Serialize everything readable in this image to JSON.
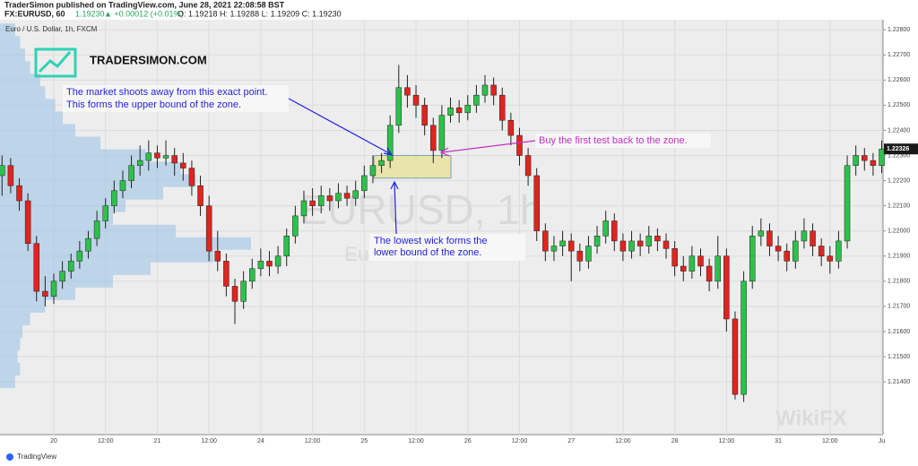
{
  "header": {
    "publisher": "TraderSimon published on TradingView.com, June 28, 2021 22:08:58 BST",
    "symbol": "FX:EURUSD, 60",
    "price": "1.19230",
    "change": "▲ +0.00012 (+0.01%)",
    "ohlc": "O: 1.19218 H: 1.19288 L: 1.19209 C: 1.19230"
  },
  "footer": "TradingView",
  "chart_data": {
    "type": "candlestick",
    "legend_text": "Euro / U.S. Dollar, 1h, FXCM",
    "watermark": [
      "EURUSD, 1h",
      "Euro / U.S. Dollar"
    ],
    "logo": "TRADERSIMON.COM",
    "corner_watermark": "WikiFX",
    "up_color": "#2cc24a",
    "down_color": "#e0241e",
    "categories": [
      null,
      null,
      null,
      null,
      null,
      null,
      "20",
      null,
      null,
      null,
      null,
      null,
      "12:00",
      null,
      null,
      null,
      null,
      null,
      "21",
      null,
      null,
      null,
      null,
      null,
      "12:00",
      null,
      null,
      null,
      null,
      null,
      "24",
      null,
      null,
      null,
      null,
      null,
      "12:00",
      null,
      null,
      null,
      null,
      null,
      "25",
      null,
      null,
      null,
      null,
      null,
      "12:00",
      null,
      null,
      null,
      null,
      null,
      "26",
      null,
      null,
      null,
      null,
      null,
      "12:00",
      null,
      null,
      null,
      null,
      null,
      "27",
      null,
      null,
      null,
      null,
      null,
      "12:00",
      null,
      null,
      null,
      null,
      null,
      "28",
      null,
      null,
      null,
      null,
      null,
      "12:00",
      null,
      null,
      null,
      null,
      null,
      "31",
      null,
      null,
      null,
      null,
      null,
      "12:00",
      null,
      null,
      null,
      null,
      null,
      "Ju"
    ],
    "series": [
      {
        "name": "EURUSD",
        "open": [
          1.2222,
          1.2226,
          1.2218,
          1.2212,
          1.2195,
          1.2176,
          1.2174,
          1.218,
          1.2184,
          1.2188,
          1.2192,
          1.2197,
          1.2204,
          1.221,
          1.2216,
          1.222,
          1.2226,
          1.2228,
          1.2231,
          1.2229,
          1.223,
          1.2227,
          1.2225,
          1.2218,
          1.221,
          1.2192,
          1.2188,
          1.2178,
          1.2172,
          1.218,
          1.2185,
          1.2188,
          1.2186,
          1.219,
          1.2198,
          1.2206,
          1.2212,
          1.221,
          1.2214,
          1.2212,
          1.2215,
          1.2213,
          1.2216,
          1.2222,
          1.2226,
          1.2228,
          1.2242,
          1.2257,
          1.2254,
          1.225,
          1.2242,
          1.2232,
          1.2246,
          1.2249,
          1.2247,
          1.225,
          1.2254,
          1.2258,
          1.2254,
          1.2244,
          1.2238,
          1.223,
          1.2222,
          1.22,
          1.2192,
          1.2194,
          1.2196,
          1.2192,
          1.2188,
          1.2194,
          1.2198,
          1.2204,
          1.2196,
          1.2192,
          1.2196,
          1.2194,
          1.2198,
          1.2196,
          1.2193,
          1.2186,
          1.2184,
          1.219,
          1.2186,
          1.218,
          1.219,
          1.2165,
          1.2135,
          1.218,
          1.2198,
          1.22,
          1.2194,
          1.2192,
          1.2188,
          1.2196,
          1.22,
          1.2194,
          1.219,
          1.2188,
          1.2196,
          1.2226,
          1.223,
          1.2228,
          1.2226
        ],
        "high": [
          1.223,
          1.2229,
          1.2221,
          1.2215,
          1.2198,
          1.2182,
          1.2183,
          1.2188,
          1.2191,
          1.2196,
          1.22,
          1.2208,
          1.2213,
          1.222,
          1.2224,
          1.223,
          1.2234,
          1.2236,
          1.2234,
          1.2236,
          1.2233,
          1.2231,
          1.2228,
          1.2222,
          1.2214,
          1.22,
          1.2191,
          1.2181,
          1.2184,
          1.2189,
          1.2193,
          1.2192,
          1.2194,
          1.2201,
          1.221,
          1.2216,
          1.2217,
          1.2218,
          1.2217,
          1.2219,
          1.2218,
          1.222,
          1.2226,
          1.223,
          1.2231,
          1.2246,
          1.2266,
          1.2262,
          1.2258,
          1.2253,
          1.2245,
          1.225,
          1.2253,
          1.2252,
          1.2254,
          1.2258,
          1.2262,
          1.2261,
          1.2257,
          1.2247,
          1.2241,
          1.2233,
          1.2225,
          1.2203,
          1.2198,
          1.22,
          1.2199,
          1.2195,
          1.2198,
          1.2202,
          1.2208,
          1.2207,
          1.2199,
          1.22,
          1.2199,
          1.2202,
          1.2201,
          1.2199,
          1.2196,
          1.219,
          1.2194,
          1.2193,
          1.2189,
          1.2198,
          1.2193,
          1.2168,
          1.2184,
          1.2202,
          1.2205,
          1.2203,
          1.2198,
          1.2195,
          1.22,
          1.2205,
          1.2203,
          1.2197,
          1.2194,
          1.22,
          1.223,
          1.2234,
          1.2233,
          1.2231,
          1.2236
        ],
        "low": [
          1.2214,
          1.2215,
          1.2208,
          1.2192,
          1.2172,
          1.217,
          1.2171,
          1.2177,
          1.2181,
          1.2185,
          1.2189,
          1.2194,
          1.2201,
          1.2207,
          1.2213,
          1.2217,
          1.2222,
          1.2224,
          1.2225,
          1.2226,
          1.2222,
          1.222,
          1.2214,
          1.2206,
          1.2188,
          1.2184,
          1.2174,
          1.2163,
          1.2169,
          1.2177,
          1.2182,
          1.2182,
          1.2183,
          1.2186,
          1.2195,
          1.2203,
          1.2206,
          1.2207,
          1.2208,
          1.2209,
          1.221,
          1.221,
          1.2213,
          1.2219,
          1.2223,
          1.2225,
          1.2239,
          1.2249,
          1.2245,
          1.2238,
          1.2227,
          1.2229,
          1.2243,
          1.2243,
          1.2244,
          1.2247,
          1.2251,
          1.225,
          1.224,
          1.2234,
          1.2226,
          1.2218,
          1.2196,
          1.2188,
          1.2188,
          1.219,
          1.218,
          1.2184,
          1.2185,
          1.2191,
          1.2195,
          1.2192,
          1.2188,
          1.2189,
          1.219,
          1.2191,
          1.2192,
          1.2189,
          1.2182,
          1.218,
          1.2181,
          1.2182,
          1.2176,
          1.2177,
          1.216,
          1.2133,
          1.2132,
          1.2177,
          1.2194,
          1.219,
          1.2188,
          1.2184,
          1.2185,
          1.2193,
          1.219,
          1.2186,
          1.2183,
          1.2185,
          1.2193,
          1.2222,
          1.2224,
          1.2222,
          1.2223
        ],
        "close": [
          1.2226,
          1.2218,
          1.2212,
          1.2195,
          1.2176,
          1.2174,
          1.218,
          1.2184,
          1.2188,
          1.2192,
          1.2197,
          1.2204,
          1.221,
          1.2216,
          1.222,
          1.2226,
          1.2228,
          1.2231,
          1.2229,
          1.223,
          1.2227,
          1.2225,
          1.2218,
          1.221,
          1.2192,
          1.2188,
          1.2178,
          1.2172,
          1.218,
          1.2185,
          1.2188,
          1.2186,
          1.219,
          1.2198,
          1.2206,
          1.2212,
          1.221,
          1.2214,
          1.2212,
          1.2215,
          1.2213,
          1.2216,
          1.2222,
          1.2226,
          1.2228,
          1.2242,
          1.2257,
          1.2254,
          1.225,
          1.2242,
          1.2232,
          1.2246,
          1.2249,
          1.2247,
          1.225,
          1.2254,
          1.2258,
          1.2254,
          1.2244,
          1.2238,
          1.223,
          1.2222,
          1.22,
          1.2192,
          1.2194,
          1.2196,
          1.2192,
          1.2188,
          1.2194,
          1.2198,
          1.2204,
          1.2196,
          1.2192,
          1.2196,
          1.2194,
          1.2198,
          1.2196,
          1.2193,
          1.2186,
          1.2184,
          1.219,
          1.2186,
          1.218,
          1.219,
          1.2165,
          1.2135,
          1.218,
          1.2198,
          1.22,
          1.2194,
          1.2192,
          1.2188,
          1.2196,
          1.22,
          1.2194,
          1.219,
          1.2188,
          1.2196,
          1.2226,
          1.223,
          1.2228,
          1.2226,
          1.22326
        ]
      }
    ],
    "ylim": [
      1.2119,
      1.2284
    ],
    "yticks": [
      {
        "value": 1.228,
        "label": "1.22800"
      },
      {
        "value": 1.227,
        "label": "1.22700"
      },
      {
        "value": 1.226,
        "label": "1.22600"
      },
      {
        "value": 1.225,
        "label": "1.22500"
      },
      {
        "value": 1.224,
        "label": "1.22400"
      },
      {
        "value": 1.223,
        "label": "1.22300"
      },
      {
        "value": 1.222,
        "label": "1.22200"
      },
      {
        "value": 1.221,
        "label": "1.22100"
      },
      {
        "value": 1.22,
        "label": "1.22000"
      },
      {
        "value": 1.219,
        "label": "1.21900"
      },
      {
        "value": 1.218,
        "label": "1.21800"
      },
      {
        "value": 1.217,
        "label": "1.21700"
      },
      {
        "value": 1.216,
        "label": "1.21600"
      },
      {
        "value": 1.215,
        "label": "1.21500"
      },
      {
        "value": 1.214,
        "label": "1.21400"
      }
    ],
    "grid": true,
    "zone": {
      "top": 1.223,
      "bottom": 1.2221,
      "color": "#e6e29a"
    },
    "volume_profile": {
      "color": "#9cc3e6",
      "prices": [
        1.214,
        1.2145,
        1.215,
        1.2155,
        1.216,
        1.2165,
        1.217,
        1.2175,
        1.218,
        1.2185,
        1.219,
        1.2195,
        1.22,
        1.2205,
        1.221,
        1.2215,
        1.222,
        1.2225,
        1.223,
        1.2235,
        1.224,
        1.2245,
        1.225,
        1.2255,
        1.226,
        1.2265,
        1.227,
        1.2275,
        1.228
      ],
      "volumes": [
        6,
        8,
        7,
        8,
        9,
        12,
        18,
        30,
        45,
        60,
        85,
        100,
        70,
        45,
        50,
        65,
        78,
        72,
        58,
        40,
        30,
        25,
        22,
        18,
        16,
        12,
        10,
        8,
        6
      ]
    },
    "annotations": [
      {
        "lines": [
          "The market shoots away from this exact point.",
          "This forms the upper bound of the zone."
        ],
        "color": "#1f1fe0"
      },
      {
        "lines": [
          "The lowest wick forms the",
          "lower bound of the zone."
        ],
        "color": "#1f1fe0"
      },
      {
        "lines": [
          "Buy the first test back to the zone."
        ],
        "color": "#c42fc4"
      }
    ]
  }
}
